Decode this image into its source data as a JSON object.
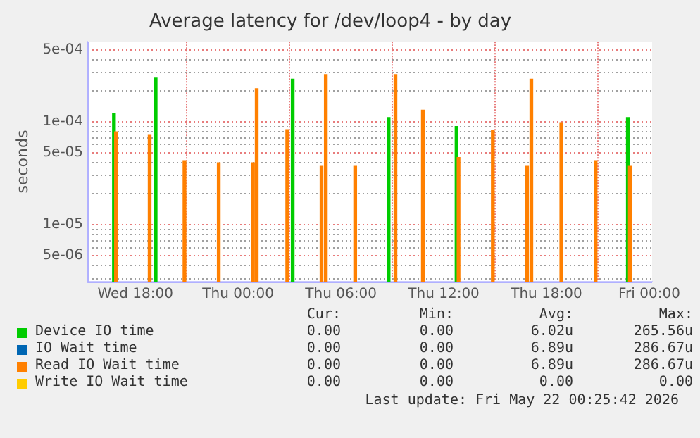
{
  "chart_data": {
    "type": "bar",
    "title": "Average latency for /dev/loop4 - by day",
    "ylabel": "seconds",
    "log": "y",
    "grid": true,
    "legend": "bottom",
    "xlim": [
      "2026-05-20T15:12",
      "2026-05-22T00:10"
    ],
    "xticks": [
      {
        "value": "2026-05-20T18:00",
        "label": "Wed 18:00"
      },
      {
        "value": "2026-05-21T00:00",
        "label": "Thu 00:00"
      },
      {
        "value": "2026-05-21T06:00",
        "label": "Thu 06:00"
      },
      {
        "value": "2026-05-21T12:00",
        "label": "Thu 12:00"
      },
      {
        "value": "2026-05-21T18:00",
        "label": "Thu 18:00"
      },
      {
        "value": "2026-05-22T00:00",
        "label": "Fri 00:00"
      }
    ],
    "ylim": [
      2.8e-06,
      0.0006
    ],
    "yticks": [
      {
        "value": 3e-06,
        "label": null
      },
      {
        "value": 4e-06,
        "label": null
      },
      {
        "value": 5e-06,
        "label": "5e-06"
      },
      {
        "value": 6e-06,
        "label": null
      },
      {
        "value": 7e-06,
        "label": null
      },
      {
        "value": 8e-06,
        "label": null
      },
      {
        "value": 9e-06,
        "label": null
      },
      {
        "value": 1e-05,
        "label": "1e-05"
      },
      {
        "value": 2e-05,
        "label": null
      },
      {
        "value": 3e-05,
        "label": null
      },
      {
        "value": 4e-05,
        "label": null
      },
      {
        "value": 5e-05,
        "label": "5e-05"
      },
      {
        "value": 6e-05,
        "label": null
      },
      {
        "value": 7e-05,
        "label": null
      },
      {
        "value": 8e-05,
        "label": null
      },
      {
        "value": 9e-05,
        "label": null
      },
      {
        "value": 0.0001,
        "label": "1e-04"
      },
      {
        "value": 0.0002,
        "label": null
      },
      {
        "value": 0.0003,
        "label": null
      },
      {
        "value": 0.0004,
        "label": null
      },
      {
        "value": 0.0005,
        "label": "5e-04"
      }
    ],
    "series": [
      {
        "name": "Device IO time",
        "color": "#00cc00",
        "x": [
          "2026-05-20T16:45",
          "2026-05-20T19:11",
          "2026-05-21T03:11",
          "2026-05-21T08:47",
          "2026-05-21T12:45",
          "2026-05-21T22:45"
        ],
        "values": [
          0.00012,
          0.000266,
          0.00026,
          0.00011,
          9e-05,
          0.00011
        ]
      },
      {
        "name": "IO Wait time",
        "color": "#0066b3"
      },
      {
        "name": "Read IO Wait time",
        "color": "#ff8000",
        "x": [
          "2026-05-20T16:52",
          "2026-05-20T18:50",
          "2026-05-20T20:52",
          "2026-05-20T22:52",
          "2026-05-21T00:52",
          "2026-05-21T01:05",
          "2026-05-21T02:52",
          "2026-05-21T04:52",
          "2026-05-21T05:07",
          "2026-05-21T06:50",
          "2026-05-21T09:11",
          "2026-05-21T10:47",
          "2026-05-21T12:52",
          "2026-05-21T14:52",
          "2026-05-21T16:52",
          "2026-05-21T17:07",
          "2026-05-21T18:52",
          "2026-05-21T20:52",
          "2026-05-21T22:52"
        ],
        "values": [
          8e-05,
          7.4e-05,
          4.2e-05,
          4e-05,
          4e-05,
          0.00021,
          8.4e-05,
          3.7e-05,
          0.000287,
          3.7e-05,
          0.000287,
          0.00013,
          4.5e-05,
          8.3e-05,
          3.7e-05,
          0.00026,
          9.8e-05,
          4.2e-05,
          3.7e-05
        ]
      },
      {
        "name": "Write IO Wait time",
        "color": "#ffcc00"
      }
    ],
    "annotations": [
      "Cur:",
      "Min:",
      "Avg:",
      "Max:",
      "0.00",
      "0.00",
      "6.02u",
      "265.56u",
      "0.00",
      "0.00",
      "6.89u",
      "286.67u",
      "0.00",
      "0.00",
      "6.89u",
      "286.67u",
      "0.00",
      "0.00",
      "0.00",
      "0.00",
      "Last update: Fri May 22 00:25:42 2026"
    ]
  }
}
